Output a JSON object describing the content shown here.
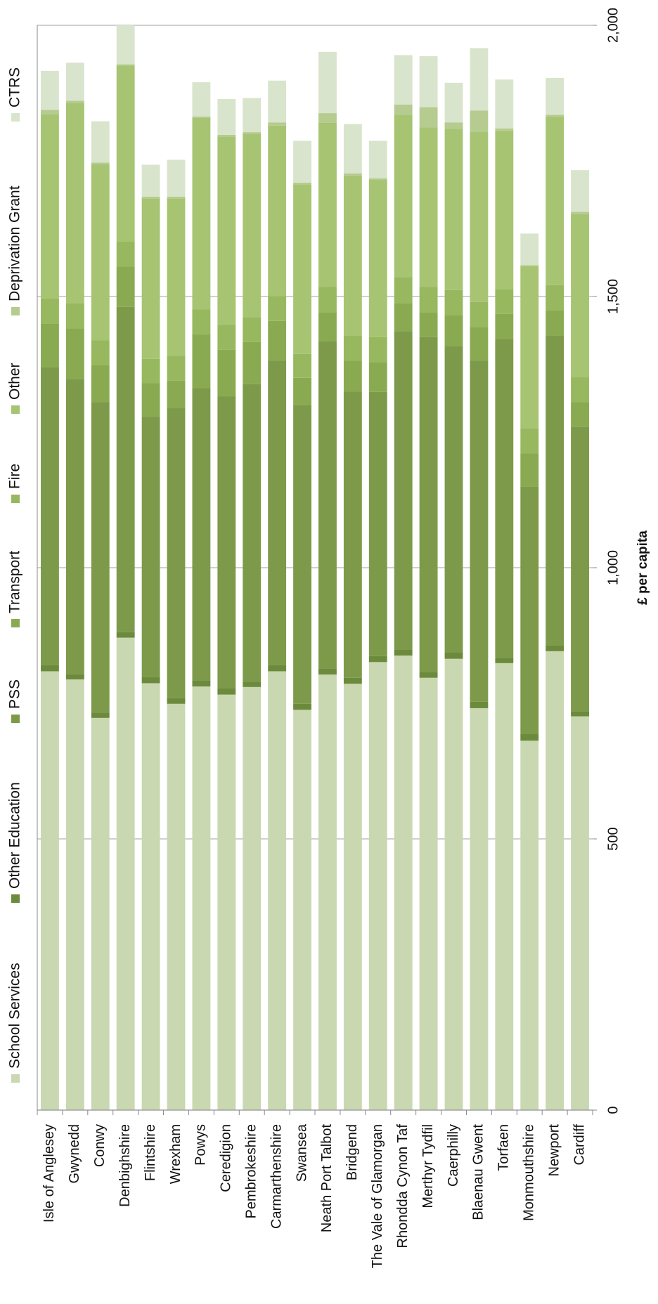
{
  "chart_data": {
    "type": "stacked-bar",
    "y_label": "£ per capita",
    "categories": [
      "Isle of Anglesey",
      "Gwynedd",
      "Conwy",
      "Denbighshire",
      "Flintshire",
      "Wrexham",
      "Powys",
      "Ceredigion",
      "Pembrokeshire",
      "Carmarthenshire",
      "Swansea",
      "Neath Port Talbot",
      "Bridgend",
      "The Vale of Glamorgan",
      "Rhondda Cynon Taf",
      "Merthyr Tydfil",
      "Caerphilly",
      "Blaenau Gwent",
      "Torfaen",
      "Monmouthshire",
      "Newport",
      "Cardiff"
    ],
    "series": [
      {
        "name": "School Services",
        "color": "#c9d8b1",
        "values": [
          809,
          794,
          723,
          871,
          787,
          749,
          781,
          766,
          780,
          809,
          738,
          803,
          786,
          826,
          838,
          797,
          832,
          741,
          824,
          681,
          846,
          726
        ]
      },
      {
        "name": "Other Education",
        "color": "#6c8a3c",
        "values": [
          11,
          10,
          10,
          10,
          11,
          11,
          11,
          12,
          10,
          11,
          11,
          11,
          11,
          11,
          11,
          10,
          12,
          12,
          10,
          12,
          11,
          9
        ]
      },
      {
        "name": "PSS",
        "color": "#7d9a4a",
        "values": [
          550,
          544,
          572,
          600,
          481,
          534,
          539,
          538,
          549,
          562,
          551,
          604,
          528,
          487,
          587,
          618,
          564,
          629,
          587,
          456,
          571,
          525
        ]
      },
      {
        "name": "Transport",
        "color": "#8aaa52",
        "values": [
          80,
          93,
          69,
          74,
          61,
          51,
          99,
          86,
          77,
          73,
          50,
          53,
          57,
          55,
          52,
          46,
          57,
          62,
          47,
          62,
          47,
          45
        ]
      },
      {
        "name": "Fire",
        "color": "#97b85e",
        "values": [
          46,
          46,
          45,
          46,
          45,
          46,
          46,
          46,
          46,
          46,
          44,
          47,
          46,
          46,
          48,
          47,
          47,
          46,
          45,
          46,
          46,
          46
        ]
      },
      {
        "name": "Other",
        "color": "#a7c472",
        "values": [
          340,
          370,
          325,
          325,
          296,
          290,
          353,
          347,
          338,
          314,
          313,
          302,
          295,
          291,
          299,
          294,
          297,
          314,
          293,
          299,
          310,
          301
        ]
      },
      {
        "name": "Deprivation Grant",
        "color": "#b5cb90",
        "values": [
          8,
          4,
          3,
          2,
          3,
          3,
          3,
          3,
          3,
          6,
          3,
          18,
          4,
          2,
          19,
          37,
          12,
          39,
          4,
          2,
          4,
          4
        ]
      },
      {
        "name": "CTRS",
        "color": "#d9e4cc",
        "values": [
          72,
          70,
          76,
          72,
          59,
          68,
          63,
          66,
          63,
          77,
          77,
          113,
          91,
          69,
          91,
          94,
          73,
          115,
          90,
          58,
          68,
          77
        ]
      }
    ],
    "ylim": [
      0,
      2000
    ],
    "yticks": [
      0,
      500,
      {
        "value": 1000,
        "label": "1,000"
      },
      {
        "value": 1500,
        "label": "1,500"
      },
      {
        "value": 2000,
        "label": "2,000"
      }
    ],
    "grid": true,
    "legend": "left"
  }
}
